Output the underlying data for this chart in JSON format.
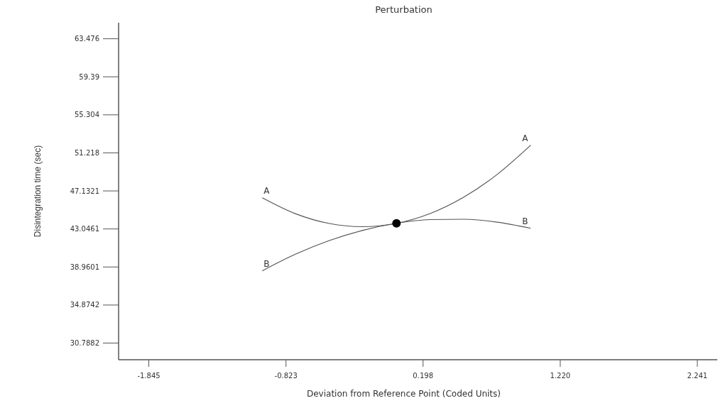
{
  "chart_data": {
    "type": "line",
    "title": "Perturbation",
    "xlabel": "Deviation from Reference Point (Coded Units)",
    "ylabel": "Disintegration time (sec)",
    "x": [
      -1,
      -0.75,
      -0.5,
      -0.25,
      0,
      0.25,
      0.5,
      0.75,
      1
    ],
    "series": [
      {
        "name": "A",
        "color": "#555555",
        "values": [
          46.4,
          44.67,
          43.63,
          43.29,
          43.65,
          44.7,
          46.45,
          48.9,
          52.04
        ]
      },
      {
        "name": "B",
        "color": "#555555",
        "values": [
          38.55,
          40.35,
          41.8,
          42.9,
          43.65,
          44.05,
          44.09,
          43.78,
          43.12
        ]
      },
      {
        "type": "scatter",
        "color": "#000000",
        "x": [
          0
        ],
        "values": [
          43.65
        ],
        "marker": "circle"
      }
    ],
    "xlim": [
      -2.07,
      2.39
    ],
    "xticks": [
      -1.845,
      -0.823,
      0.198,
      {
        "value": 1.22,
        "label": "1.220"
      },
      2.241
    ],
    "ylim": [
      29.0,
      65.2
    ],
    "yticks": [
      30.7882,
      34.8742,
      38.9601,
      43.0461,
      47.1321,
      51.218,
      55.304,
      59.39,
      63.476
    ],
    "grid": false,
    "legend": false,
    "marker": "none",
    "line_style": "solid"
  }
}
